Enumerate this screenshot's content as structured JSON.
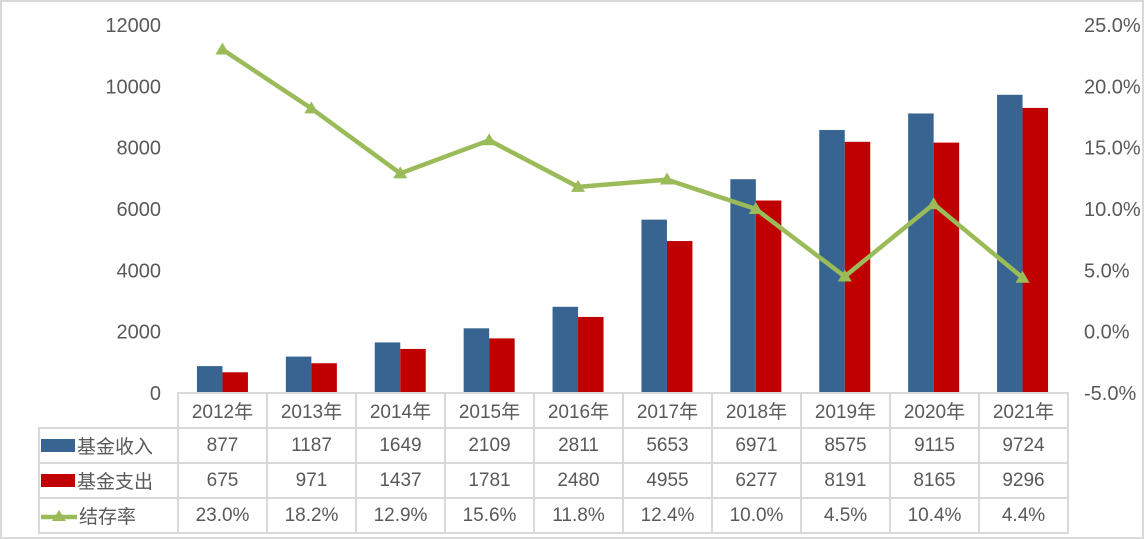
{
  "chart_data": {
    "type": "bar+line",
    "title": "",
    "categories": [
      "2012年",
      "2013年",
      "2014年",
      "2015年",
      "2016年",
      "2017年",
      "2018年",
      "2019年",
      "2020年",
      "2021年"
    ],
    "series": [
      {
        "name": "基金收入",
        "chart": "bar",
        "color": "#376491",
        "values": [
          877,
          1187,
          1649,
          2109,
          2811,
          5653,
          6971,
          8575,
          9115,
          9724
        ],
        "display": [
          "877",
          "1187",
          "1649",
          "2109",
          "2811",
          "5653",
          "6971",
          "8575",
          "9115",
          "9724"
        ],
        "axis": "left"
      },
      {
        "name": "基金支出",
        "chart": "bar",
        "color": "#C00000",
        "values": [
          675,
          971,
          1437,
          1781,
          2480,
          4955,
          6277,
          8191,
          8165,
          9296
        ],
        "display": [
          "675",
          "971",
          "1437",
          "1781",
          "2480",
          "4955",
          "6277",
          "8191",
          "8165",
          "9296"
        ],
        "axis": "right-of-pair",
        "value_axis": "left"
      },
      {
        "name": "结存率",
        "chart": "line",
        "marker": "triangle",
        "color": "#9BBB59",
        "values": [
          23.0,
          18.2,
          12.9,
          15.6,
          11.8,
          12.4,
          10.0,
          4.5,
          10.4,
          4.4
        ],
        "display": [
          "23.0%",
          "18.2%",
          "12.9%",
          "15.6%",
          "11.8%",
          "12.4%",
          "10.0%",
          "4.5%",
          "10.4%",
          "4.4%"
        ],
        "value_axis": "right"
      }
    ],
    "left_axis": {
      "min": 0,
      "max": 12000,
      "step": 2000,
      "ticks": [
        {
          "label": "0",
          "value": 0
        },
        {
          "label": "2000",
          "value": 2000
        },
        {
          "label": "4000",
          "value": 4000
        },
        {
          "label": "6000",
          "value": 6000
        },
        {
          "label": "8000",
          "value": 8000
        },
        {
          "label": "10000",
          "value": 10000
        },
        {
          "label": "12000",
          "value": 12000
        }
      ]
    },
    "right_axis": {
      "min": -5,
      "max": 25,
      "step": 5,
      "ticks": [
        {
          "label": "-5.0%",
          "value": -5
        },
        {
          "label": "0.0%",
          "value": 0
        },
        {
          "label": "5.0%",
          "value": 5
        },
        {
          "label": "10.0%",
          "value": 10
        },
        {
          "label": "15.0%",
          "value": 15
        },
        {
          "label": "20.0%",
          "value": 20
        },
        {
          "label": "25.0%",
          "value": 25
        }
      ]
    },
    "grid": false,
    "legend_position": "data-table-left"
  },
  "style": {
    "background": "#FFFFFF",
    "border_color": "#D9D9D9",
    "text_color": "#595959",
    "income_color": "#376491",
    "expense_color": "#C00000",
    "rate_color": "#9BBB59"
  }
}
